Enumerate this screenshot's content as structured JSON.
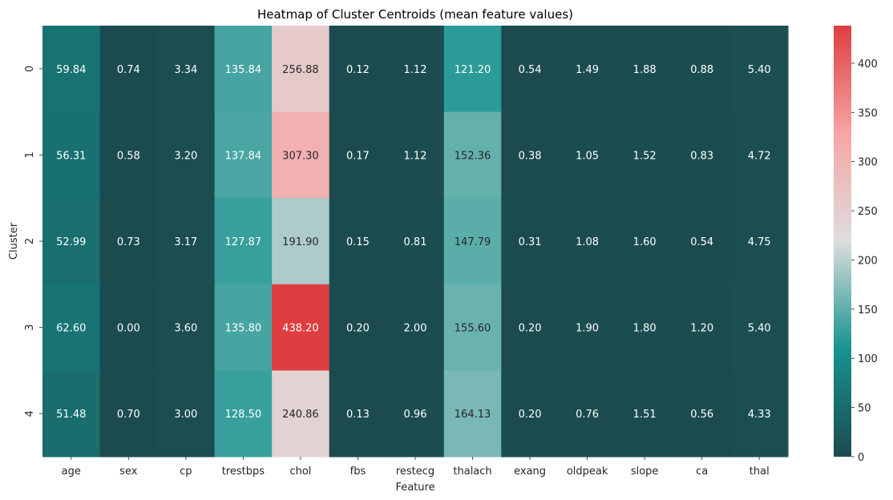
{
  "chart_data": {
    "type": "heatmap",
    "title": "Heatmap of Cluster Centroids (mean feature values)",
    "xlabel": "Feature",
    "ylabel": "Cluster",
    "x_categories": [
      "age",
      "sex",
      "cp",
      "trestbps",
      "chol",
      "fbs",
      "restecg",
      "thalach",
      "exang",
      "oldpeak",
      "slope",
      "ca",
      "thal"
    ],
    "y_categories": [
      "0",
      "1",
      "2",
      "3",
      "4"
    ],
    "values": [
      [
        59.84,
        0.74,
        3.34,
        135.84,
        256.88,
        0.12,
        1.12,
        121.2,
        0.54,
        1.49,
        1.88,
        0.88,
        5.4
      ],
      [
        56.31,
        0.58,
        3.2,
        137.84,
        307.3,
        0.17,
        1.12,
        152.36,
        0.38,
        1.05,
        1.52,
        0.83,
        4.72
      ],
      [
        52.99,
        0.73,
        3.17,
        127.87,
        191.9,
        0.15,
        0.81,
        147.79,
        0.31,
        1.08,
        1.6,
        0.54,
        4.75
      ],
      [
        62.6,
        0.0,
        3.6,
        135.8,
        438.2,
        0.2,
        2.0,
        155.6,
        0.2,
        1.9,
        1.8,
        1.2,
        5.4
      ],
      [
        51.48,
        0.7,
        3.0,
        128.5,
        240.86,
        0.13,
        0.96,
        164.13,
        0.2,
        0.76,
        1.51,
        0.56,
        4.33
      ]
    ],
    "cell_labels": [
      [
        "59.84",
        "0.74",
        "3.34",
        "135.84",
        "256.88",
        "0.12",
        "1.12",
        "121.20",
        "0.54",
        "1.49",
        "1.88",
        "0.88",
        "5.40"
      ],
      [
        "56.31",
        "0.58",
        "3.20",
        "137.84",
        "307.30",
        "0.17",
        "1.12",
        "152.36",
        "0.38",
        "1.05",
        "1.52",
        "0.83",
        "4.72"
      ],
      [
        "52.99",
        "0.73",
        "3.17",
        "127.87",
        "191.90",
        "0.15",
        "0.81",
        "147.79",
        "0.31",
        "1.08",
        "1.60",
        "0.54",
        "4.75"
      ],
      [
        "62.60",
        "0.00",
        "3.60",
        "135.80",
        "438.20",
        "0.20",
        "2.00",
        "155.60",
        "0.20",
        "1.90",
        "1.80",
        "1.20",
        "5.40"
      ],
      [
        "51.48",
        "0.70",
        "3.00",
        "128.50",
        "240.86",
        "0.13",
        "0.96",
        "164.13",
        "0.20",
        "0.76",
        "1.51",
        "0.56",
        "4.33"
      ]
    ],
    "colorbar": {
      "vmin": 0,
      "vmax": 438.2,
      "ticks": [
        0,
        50,
        100,
        150,
        200,
        250,
        300,
        350,
        400
      ],
      "colors": [
        "#1b4b4f",
        "#16938f",
        "#dddddd",
        "#f7a5a5",
        "#de3e40"
      ]
    },
    "annotation_colors": {
      "light": "#ffffff",
      "dark": "#262626"
    },
    "grid": false
  }
}
